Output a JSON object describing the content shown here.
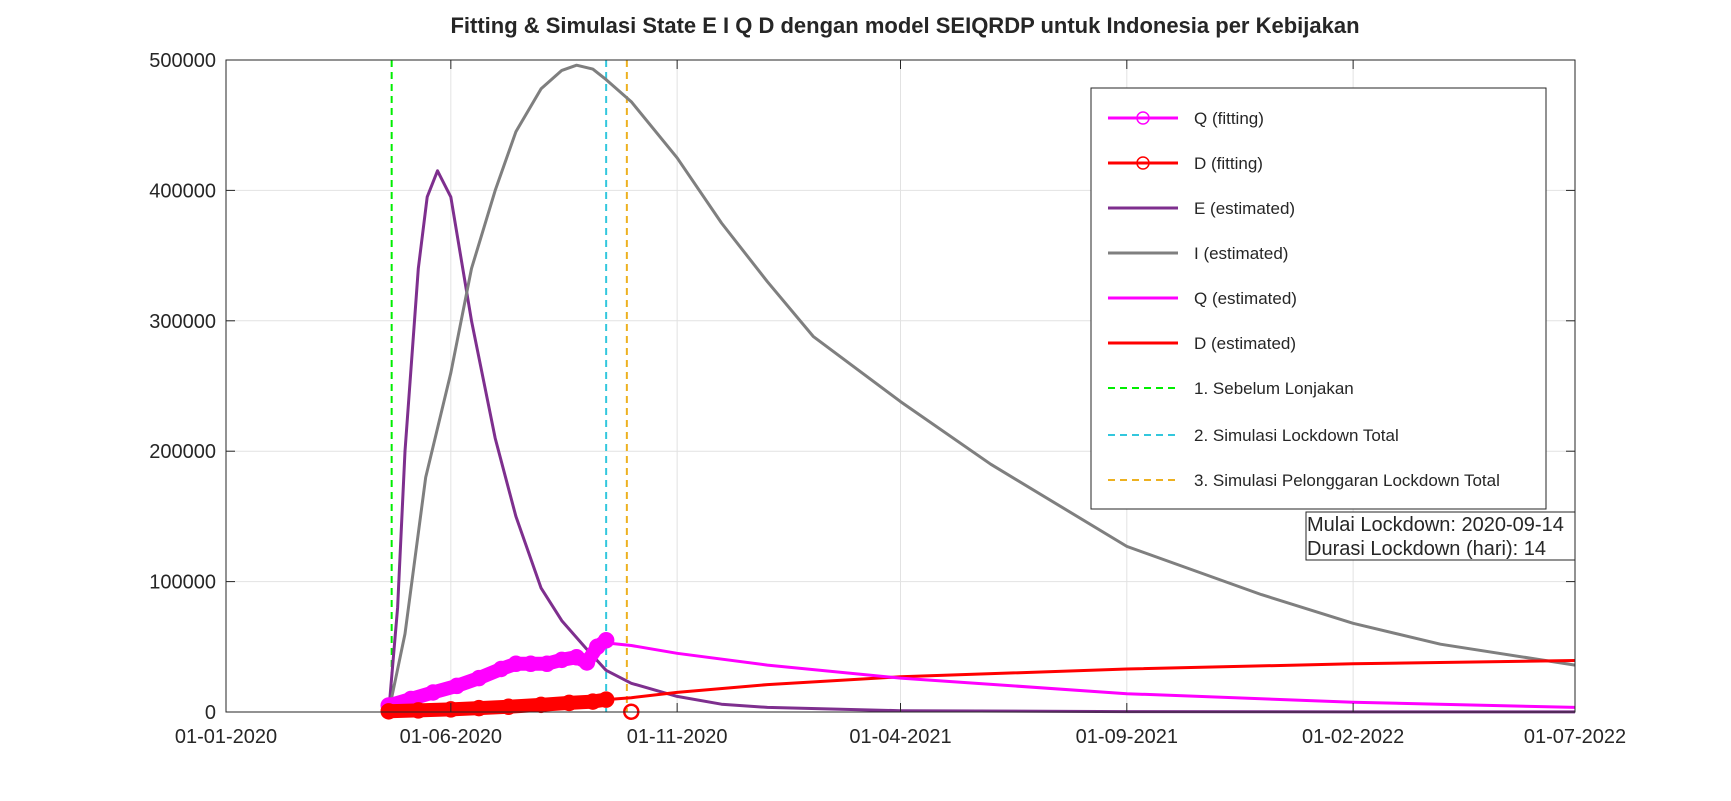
{
  "chart_data": {
    "type": "line",
    "title": "Fitting & Simulasi State  E I Q D dengan model SEIQRDP untuk Indonesia per Kebijakan",
    "xlabel": "",
    "ylabel": "",
    "x_axis": {
      "type": "date",
      "range": [
        "2020-01-01",
        "2022-07-01"
      ],
      "ticks": [
        {
          "date": "2020-01-01",
          "label": "01-01-2020"
        },
        {
          "date": "2020-06-01",
          "label": "01-06-2020"
        },
        {
          "date": "2020-11-01",
          "label": "01-11-2020"
        },
        {
          "date": "2021-04-01",
          "label": "01-04-2021"
        },
        {
          "date": "2021-09-01",
          "label": "01-09-2021"
        },
        {
          "date": "2022-02-01",
          "label": "01-02-2022"
        },
        {
          "date": "2022-07-01",
          "label": "01-07-2022"
        }
      ]
    },
    "y_axis": {
      "range": [
        0,
        500000
      ],
      "ticks": [
        {
          "value": 0,
          "label": "0"
        },
        {
          "value": 100000,
          "label": "100000"
        },
        {
          "value": 200000,
          "label": "200000"
        },
        {
          "value": 300000,
          "label": "300000"
        },
        {
          "value": 400000,
          "label": "400000"
        },
        {
          "value": 500000,
          "label": "500000"
        }
      ]
    },
    "grid": true,
    "legend_position": "top-right",
    "series": [
      {
        "name": "Q (fitting)",
        "style": "markers",
        "color": "#ff00ff",
        "marker": "circle",
        "points": [
          [
            "2020-04-20",
            5000
          ],
          [
            "2020-05-05",
            10000
          ],
          [
            "2020-05-20",
            15000
          ],
          [
            "2020-06-05",
            20000
          ],
          [
            "2020-06-20",
            26000
          ],
          [
            "2020-07-05",
            33000
          ],
          [
            "2020-07-15",
            37000
          ],
          [
            "2020-07-25",
            37000
          ],
          [
            "2020-08-05",
            37000
          ],
          [
            "2020-08-15",
            40000
          ],
          [
            "2020-08-25",
            42000
          ],
          [
            "2020-09-01",
            38000
          ],
          [
            "2020-09-08",
            50000
          ],
          [
            "2020-09-14",
            55000
          ]
        ]
      },
      {
        "name": "D (fitting)",
        "style": "markers",
        "color": "#ff0000",
        "marker": "circle",
        "points": [
          [
            "2020-04-20",
            500
          ],
          [
            "2020-05-10",
            1200
          ],
          [
            "2020-06-01",
            2000
          ],
          [
            "2020-06-20",
            3000
          ],
          [
            "2020-07-10",
            4000
          ],
          [
            "2020-08-01",
            5500
          ],
          [
            "2020-08-20",
            7000
          ],
          [
            "2020-09-05",
            8000
          ],
          [
            "2020-09-14",
            9500
          ],
          [
            "2020-10-01",
            200
          ]
        ]
      },
      {
        "name": "E (estimated)",
        "style": "line",
        "color": "#7e2f8e",
        "points": [
          [
            "2020-04-20",
            0
          ],
          [
            "2020-04-26",
            80000
          ],
          [
            "2020-05-01",
            200000
          ],
          [
            "2020-05-10",
            340000
          ],
          [
            "2020-05-16",
            395000
          ],
          [
            "2020-05-23",
            415000
          ],
          [
            "2020-06-01",
            395000
          ],
          [
            "2020-06-15",
            300000
          ],
          [
            "2020-07-01",
            210000
          ],
          [
            "2020-07-15",
            150000
          ],
          [
            "2020-08-01",
            95000
          ],
          [
            "2020-08-15",
            70000
          ],
          [
            "2020-09-01",
            48000
          ],
          [
            "2020-09-14",
            32000
          ],
          [
            "2020-10-01",
            22000
          ],
          [
            "2020-11-01",
            12000
          ],
          [
            "2020-12-01",
            6000
          ],
          [
            "2021-01-01",
            3500
          ],
          [
            "2021-04-01",
            1000
          ],
          [
            "2021-09-01",
            300
          ],
          [
            "2022-02-01",
            100
          ],
          [
            "2022-07-01",
            50
          ]
        ]
      },
      {
        "name": "I (estimated)",
        "style": "line",
        "color": "#7f7f7f",
        "points": [
          [
            "2020-04-20",
            0
          ],
          [
            "2020-05-01",
            60000
          ],
          [
            "2020-05-15",
            180000
          ],
          [
            "2020-06-01",
            260000
          ],
          [
            "2020-06-15",
            340000
          ],
          [
            "2020-07-01",
            400000
          ],
          [
            "2020-07-15",
            445000
          ],
          [
            "2020-08-01",
            478000
          ],
          [
            "2020-08-15",
            492000
          ],
          [
            "2020-08-25",
            496000
          ],
          [
            "2020-09-05",
            493000
          ],
          [
            "2020-09-14",
            485000
          ],
          [
            "2020-10-01",
            468000
          ],
          [
            "2020-11-01",
            425000
          ],
          [
            "2020-12-01",
            375000
          ],
          [
            "2021-01-01",
            330000
          ],
          [
            "2021-02-01",
            288000
          ],
          [
            "2021-04-01",
            238000
          ],
          [
            "2021-06-01",
            190000
          ],
          [
            "2021-09-01",
            127000
          ],
          [
            "2021-12-01",
            90000
          ],
          [
            "2022-02-01",
            68000
          ],
          [
            "2022-04-01",
            52000
          ],
          [
            "2022-07-01",
            36000
          ]
        ]
      },
      {
        "name": "Q (estimated)",
        "style": "line",
        "color": "#ff00ff",
        "points": [
          [
            "2020-09-14",
            53000
          ],
          [
            "2020-10-01",
            51000
          ],
          [
            "2020-11-01",
            45000
          ],
          [
            "2021-01-01",
            36000
          ],
          [
            "2021-04-01",
            26000
          ],
          [
            "2021-09-01",
            14000
          ],
          [
            "2022-02-01",
            7500
          ],
          [
            "2022-07-01",
            3500
          ]
        ]
      },
      {
        "name": "D (estimated)",
        "style": "line",
        "color": "#ff0000",
        "points": [
          [
            "2020-09-14",
            9500
          ],
          [
            "2020-10-01",
            11000
          ],
          [
            "2020-11-01",
            15000
          ],
          [
            "2021-01-01",
            21000
          ],
          [
            "2021-04-01",
            27000
          ],
          [
            "2021-09-01",
            33000
          ],
          [
            "2022-02-01",
            37000
          ],
          [
            "2022-07-01",
            39500
          ]
        ]
      },
      {
        "name": "1. Sebelum Lonjakan",
        "style": "vline",
        "color": "#00ee00",
        "x": "2020-04-22"
      },
      {
        "name": "2. Simulasi Lockdown Total",
        "style": "vline",
        "color": "#33c7dd",
        "x": "2020-09-14"
      },
      {
        "name": "3. Simulasi Pelonggaran Lockdown Total",
        "style": "vline",
        "color": "#edb120",
        "x": "2020-09-28"
      }
    ],
    "annotations": [
      "Mulai Lockdown: 2020-09-14",
      "Durasi Lockdown (hari): 14"
    ]
  }
}
